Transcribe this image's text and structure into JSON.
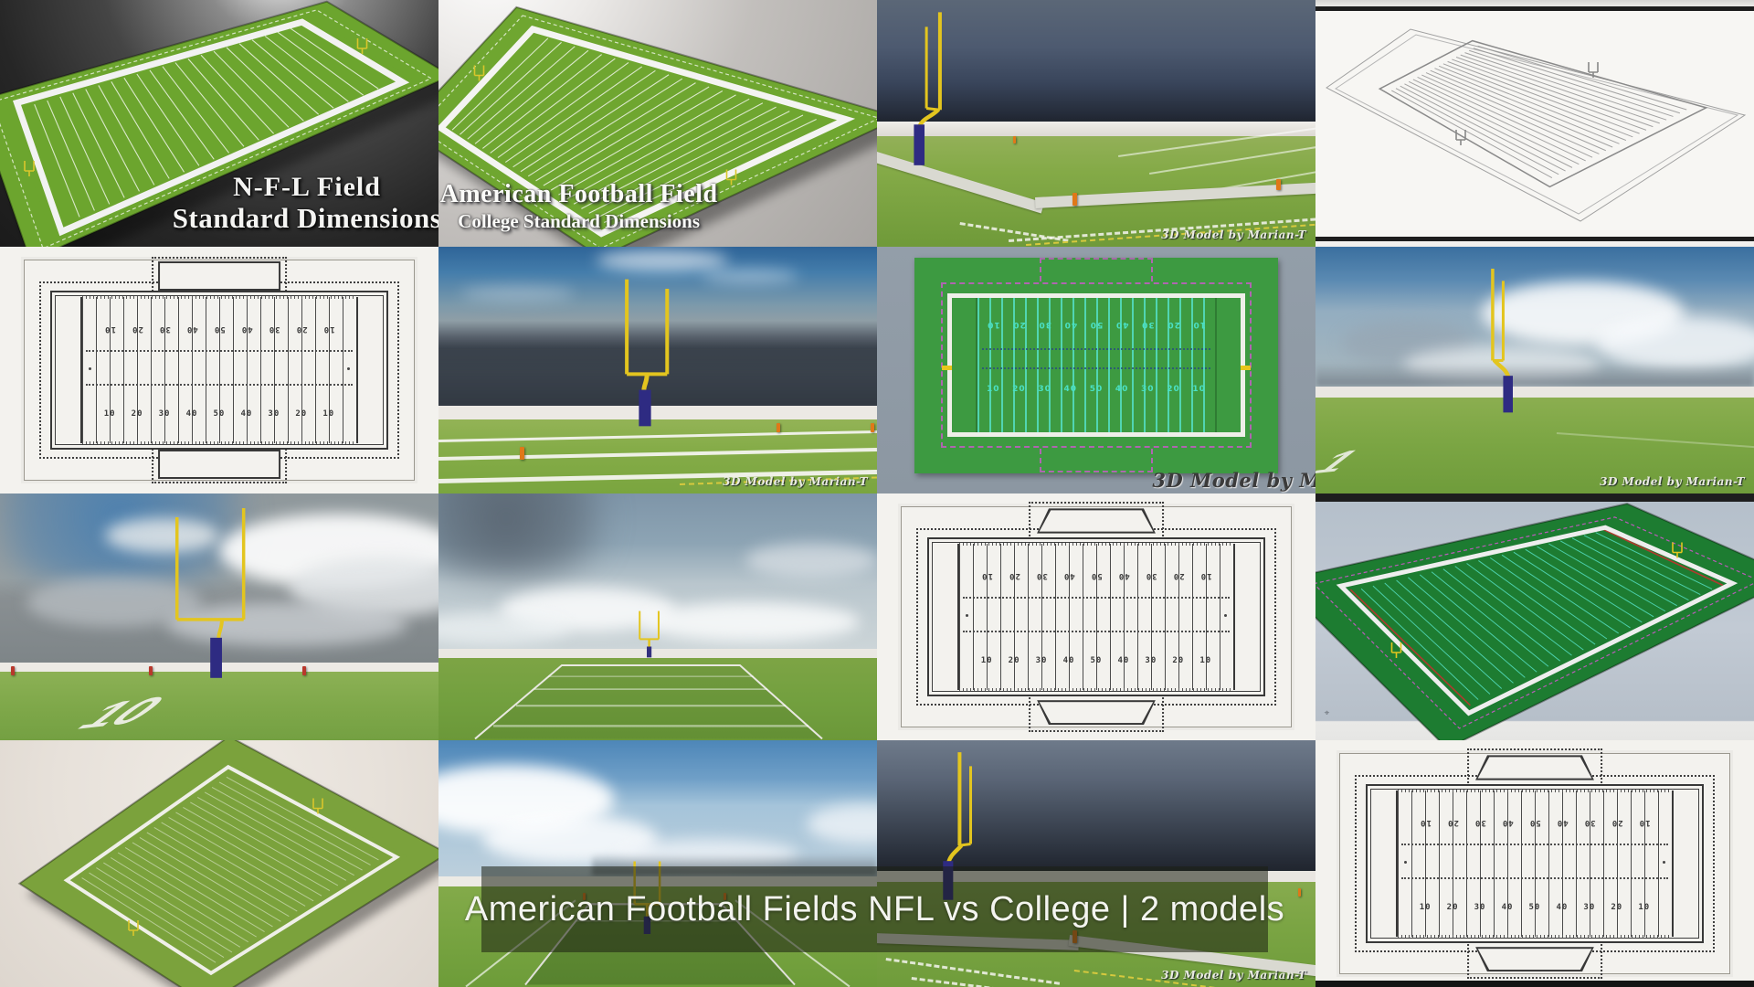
{
  "caption": {
    "text": "American Football Fields NFL vs College | 2 models"
  },
  "colors": {
    "field_green": "#6ca52e",
    "render_green": "#3d9a41",
    "viewport_green": "#1d7c31",
    "goalpost_yellow": "#e3c51f",
    "pad_navy": "#2e2b82",
    "pylon_orange": "#e07818",
    "pylon_red": "#b9382c",
    "cyan_line": "#52d8b8",
    "magenta_dash": "#c45cc4",
    "caption_bg": "rgba(28,31,18,0.55)"
  },
  "tiles": [
    {
      "id": "nfl-field-dark",
      "title_line1": "N-F-L Field",
      "title_line2": "Standard Dimensions"
    },
    {
      "id": "college-field-light",
      "title_line1": "American Football Field",
      "title_line2": "College Standard Dimensions"
    },
    {
      "id": "goalpost-dark-sky",
      "watermark": "3D Model by Marian-T"
    },
    {
      "id": "wireframe-field"
    },
    {
      "id": "schematic-nfl",
      "yard_numbers": [
        "10",
        "20",
        "30",
        "40",
        "50",
        "40",
        "30",
        "20",
        "10"
      ]
    },
    {
      "id": "goalpost-storm-sky",
      "watermark": "3D Model by Marian-T"
    },
    {
      "id": "topdown-nfl-field",
      "watermark": "3D Model by M",
      "yard_numbers": [
        "10",
        "20",
        "30",
        "40",
        "50",
        "40",
        "30",
        "20",
        "10"
      ]
    },
    {
      "id": "goalpost-cloud-sky",
      "watermark": "3D Model by Marian-T"
    },
    {
      "id": "goalpost-gray-clouds",
      "field_number": "10"
    },
    {
      "id": "endzone-view"
    },
    {
      "id": "schematic-college",
      "yard_numbers": [
        "10",
        "20",
        "30",
        "40",
        "50",
        "40",
        "30",
        "20",
        "10"
      ]
    },
    {
      "id": "viewport-angled-field"
    },
    {
      "id": "portrait-angled-field"
    },
    {
      "id": "endzone-blue-sky"
    },
    {
      "id": "goalpost-dark-sky-2",
      "watermark": "3D Model by Marian-T"
    },
    {
      "id": "schematic-college-2",
      "yard_numbers": [
        "10",
        "20",
        "30",
        "40",
        "50",
        "40",
        "30",
        "20",
        "10"
      ]
    }
  ]
}
